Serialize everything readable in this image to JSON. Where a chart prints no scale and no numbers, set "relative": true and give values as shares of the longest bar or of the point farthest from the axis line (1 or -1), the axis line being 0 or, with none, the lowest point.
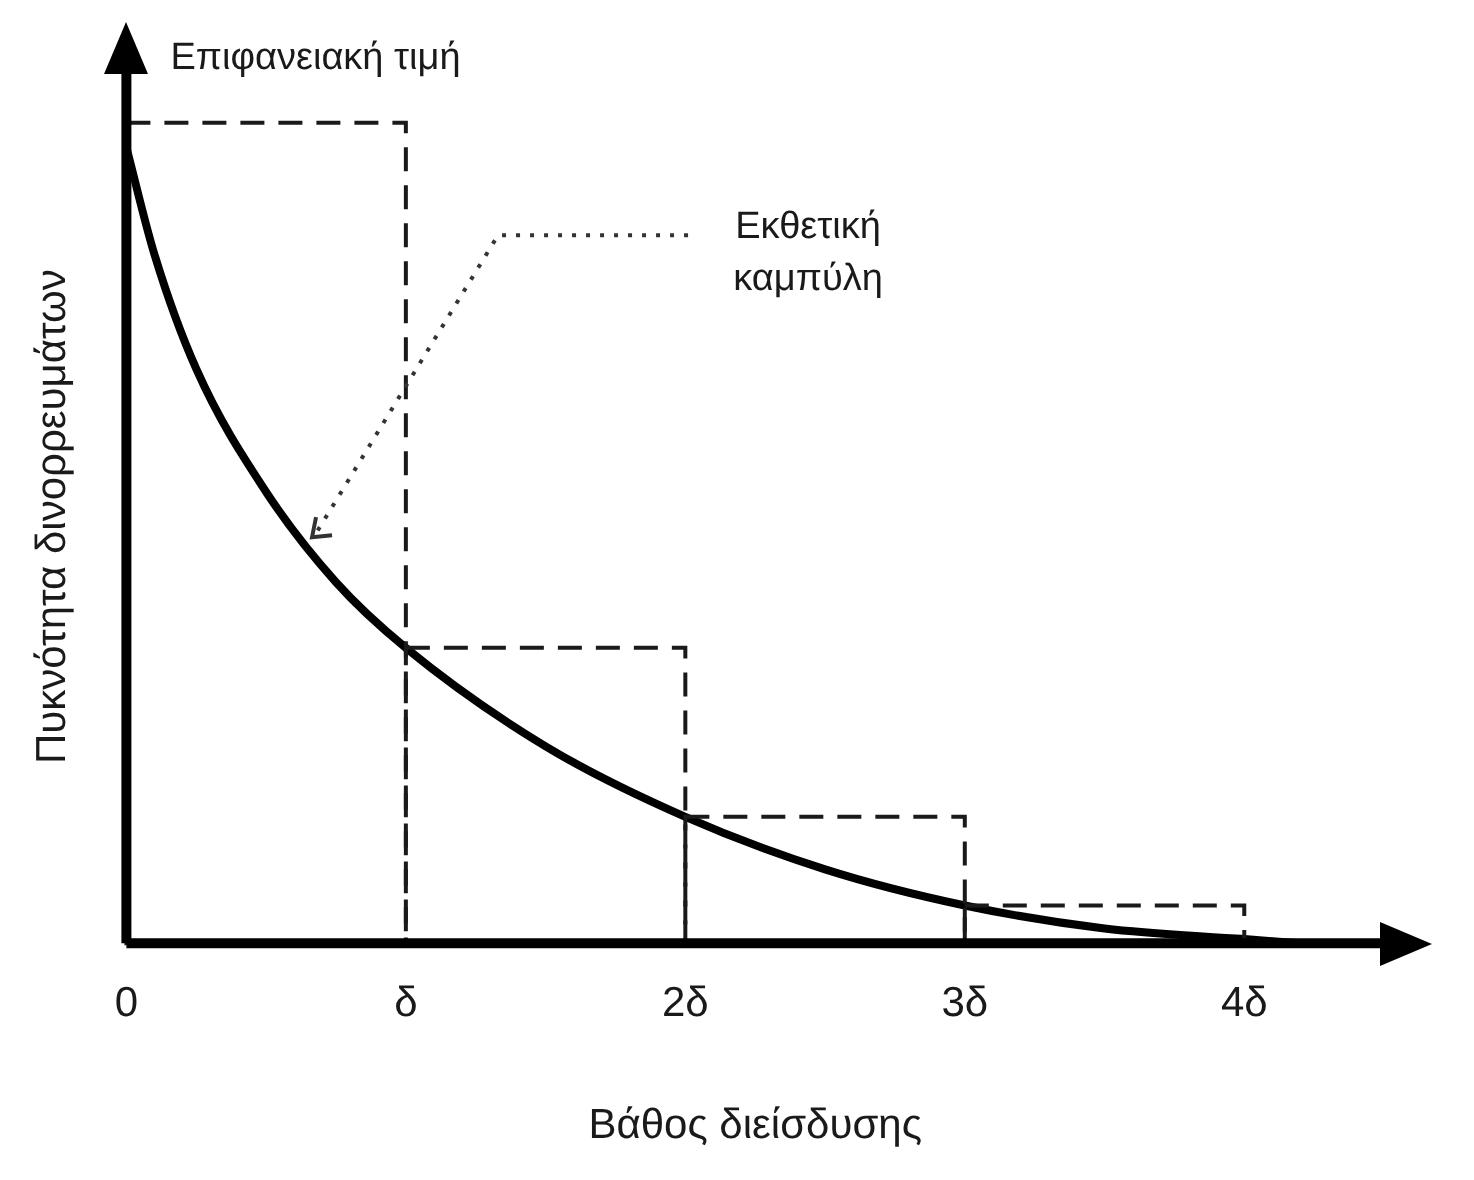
{
  "chart_data": {
    "type": "line",
    "relative": true,
    "xlabel": "Βάθος διείσδυσης",
    "ylabel": "Πυκνότητα δινορρευμάτων",
    "xlim": [
      0,
      4.5
    ],
    "xticks": [
      {
        "value": 0,
        "label": "0"
      },
      {
        "value": 1,
        "label": "δ"
      },
      {
        "value": 2,
        "label": "2δ"
      },
      {
        "value": 3,
        "label": "3δ"
      },
      {
        "value": 4,
        "label": "4δ"
      }
    ],
    "grid": false,
    "legend": false,
    "marker": "none",
    "series": [
      {
        "type": "bar",
        "x": [
          0.5,
          1.5,
          2.5,
          3.5
        ],
        "values": [
          1,
          0.36,
          0.154,
          0.046
        ],
        "color": "#1a1a1a",
        "line_style": "dashed"
      },
      {
        "x": [
          0,
          0.1,
          0.25,
          0.5,
          0.75,
          1,
          1.5,
          2,
          2.5,
          3,
          3.5,
          4,
          4.2
        ],
        "values": [
          0.97,
          0.84,
          0.7,
          0.55,
          0.44,
          0.36,
          0.24,
          0.154,
          0.09,
          0.046,
          0.018,
          0.005,
          0
        ],
        "color": "#000000",
        "line_style": "solid"
      }
    ],
    "annotations": [
      "Επιφανειακή τιμή",
      {
        "text": "Εκθετική\nκαμπύλη",
        "x": 0.65,
        "y": 0.49
      }
    ]
  }
}
